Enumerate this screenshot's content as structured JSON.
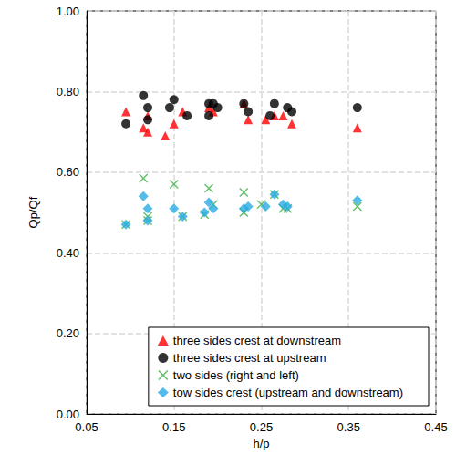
{
  "chart_data": {
    "type": "scatter",
    "x_label": "h/p",
    "y_label": "Qp/Qf",
    "xlim": [
      0.05,
      0.45
    ],
    "xticks": [
      0.05,
      0.15,
      0.25,
      0.35,
      0.45
    ],
    "ylim": [
      0,
      1
    ],
    "yticks": [
      {
        "value": 0,
        "label": "0.00"
      },
      {
        "value": 0.2,
        "label": "0.20"
      },
      {
        "value": 0.4,
        "label": "0.40"
      },
      {
        "value": 0.6,
        "label": "0.60"
      },
      {
        "value": 0.8,
        "label": "0.80"
      },
      {
        "value": 1,
        "label": "1.00"
      }
    ],
    "grid": true,
    "legend": "lower right",
    "series": [
      {
        "name": "three sides crest at downstream",
        "color": "#ff0000",
        "marker": "triangle",
        "x": [
          0.095,
          0.115,
          0.12,
          0.12,
          0.14,
          0.15,
          0.16,
          0.19,
          0.195,
          0.23,
          0.235,
          0.255,
          0.265,
          0.275,
          0.285,
          0.36
        ],
        "values": [
          0.75,
          0.71,
          0.7,
          0.74,
          0.69,
          0.72,
          0.75,
          0.76,
          0.75,
          0.77,
          0.73,
          0.73,
          0.74,
          0.74,
          0.72,
          0.71
        ]
      },
      {
        "name": "three sides crest at upstream",
        "color": "#000000",
        "marker": "circle",
        "x": [
          0.095,
          0.115,
          0.12,
          0.12,
          0.145,
          0.15,
          0.165,
          0.19,
          0.195,
          0.19,
          0.2,
          0.23,
          0.235,
          0.26,
          0.265,
          0.28,
          0.285,
          0.36
        ],
        "values": [
          0.72,
          0.79,
          0.76,
          0.73,
          0.76,
          0.78,
          0.74,
          0.77,
          0.77,
          0.74,
          0.76,
          0.77,
          0.75,
          0.74,
          0.77,
          0.76,
          0.75,
          0.76
        ]
      },
      {
        "name": "two sides (right and left)",
        "color": "#3cb043",
        "marker": "x",
        "x": [
          0.095,
          0.115,
          0.12,
          0.12,
          0.15,
          0.16,
          0.185,
          0.19,
          0.195,
          0.23,
          0.23,
          0.25,
          0.265,
          0.275,
          0.28,
          0.36
        ],
        "values": [
          0.47,
          0.585,
          0.49,
          0.48,
          0.57,
          0.49,
          0.495,
          0.56,
          0.52,
          0.55,
          0.5,
          0.52,
          0.545,
          0.51,
          0.51,
          0.515
        ]
      },
      {
        "name": "tow sides crest (upstream and downstream)",
        "color": "#29abe2",
        "marker": "diamond",
        "x": [
          0.095,
          0.115,
          0.12,
          0.12,
          0.15,
          0.16,
          0.185,
          0.19,
          0.195,
          0.23,
          0.235,
          0.255,
          0.265,
          0.275,
          0.28,
          0.36
        ],
        "values": [
          0.47,
          0.54,
          0.51,
          0.48,
          0.51,
          0.49,
          0.5,
          0.525,
          0.51,
          0.51,
          0.515,
          0.515,
          0.545,
          0.52,
          0.515,
          0.53
        ]
      }
    ]
  }
}
